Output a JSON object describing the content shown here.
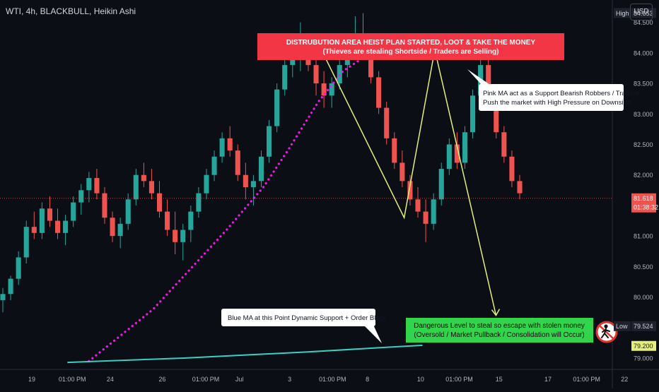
{
  "header": {
    "title": "WTI, 4h, BLACKBULL, Heikin Ashi",
    "currency_button": "USD"
  },
  "colors": {
    "background": "#0c0e15",
    "up": "#26a69a",
    "down": "#ef5350",
    "pink_ma": "#e91ee0",
    "blue_ma": "#3ad0c0",
    "annotation": "#e4ef7a",
    "current_price": "#ef5350"
  },
  "chart_data": {
    "type": "candlestick",
    "style": "Heikin Ashi",
    "symbol": "WTI",
    "interval": "4h",
    "broker": "BLACKBULL",
    "ylim": [
      78.85,
      84.75
    ],
    "y_ticks": [
      "79.000",
      "79.500",
      "80.000",
      "80.500",
      "81.000",
      "81.500",
      "82.000",
      "82.500",
      "83.000",
      "83.500",
      "84.000",
      "84.500"
    ],
    "x_ticks": [
      "19",
      "01:00 PM",
      "24",
      "26",
      "01:00 PM",
      "Jul",
      "3",
      "01:00 PM",
      "8",
      "10",
      "01:00 PM",
      "15",
      "17",
      "01:00 PM",
      "22"
    ],
    "high": {
      "label": "High",
      "value": "84.653"
    },
    "low": {
      "label": "Low",
      "value": "79.524"
    },
    "current_price": {
      "value": "81.618",
      "countdown": "01:38:32"
    },
    "level_marker": "79.200",
    "candles_sample": [
      {
        "o": 79.95,
        "h": 80.15,
        "l": 79.75,
        "c": 80.05
      },
      {
        "o": 80.05,
        "h": 80.35,
        "l": 79.95,
        "c": 80.3
      },
      {
        "o": 80.3,
        "h": 80.75,
        "l": 80.2,
        "c": 80.65
      },
      {
        "o": 80.65,
        "h": 81.25,
        "l": 80.55,
        "c": 81.15
      },
      {
        "o": 81.15,
        "h": 81.4,
        "l": 80.95,
        "c": 81.05
      },
      {
        "o": 81.05,
        "h": 81.55,
        "l": 80.95,
        "c": 81.45
      },
      {
        "o": 81.45,
        "h": 81.65,
        "l": 81.15,
        "c": 81.25
      },
      {
        "o": 81.25,
        "h": 81.45,
        "l": 80.95,
        "c": 81.05
      },
      {
        "o": 81.05,
        "h": 81.35,
        "l": 80.85,
        "c": 81.25
      },
      {
        "o": 81.25,
        "h": 81.65,
        "l": 81.15,
        "c": 81.55
      },
      {
        "o": 81.55,
        "h": 81.85,
        "l": 81.35,
        "c": 81.75
      },
      {
        "o": 81.75,
        "h": 82.05,
        "l": 81.55,
        "c": 81.95
      },
      {
        "o": 81.95,
        "h": 82.1,
        "l": 81.6,
        "c": 81.7
      },
      {
        "o": 81.7,
        "h": 81.8,
        "l": 81.2,
        "c": 81.3
      },
      {
        "o": 81.3,
        "h": 81.4,
        "l": 80.9,
        "c": 81.0
      },
      {
        "o": 81.0,
        "h": 81.3,
        "l": 80.8,
        "c": 81.2
      },
      {
        "o": 81.2,
        "h": 81.7,
        "l": 81.1,
        "c": 81.6
      },
      {
        "o": 81.6,
        "h": 82.1,
        "l": 81.5,
        "c": 82.0
      },
      {
        "o": 82.0,
        "h": 82.2,
        "l": 81.8,
        "c": 81.9
      },
      {
        "o": 81.9,
        "h": 82.1,
        "l": 81.6,
        "c": 81.7
      },
      {
        "o": 81.7,
        "h": 81.9,
        "l": 81.3,
        "c": 81.4
      },
      {
        "o": 81.4,
        "h": 81.6,
        "l": 81.0,
        "c": 81.1
      },
      {
        "o": 81.1,
        "h": 81.4,
        "l": 80.7,
        "c": 80.9
      },
      {
        "o": 80.9,
        "h": 81.2,
        "l": 80.6,
        "c": 81.1
      },
      {
        "o": 81.1,
        "h": 81.5,
        "l": 80.9,
        "c": 81.4
      },
      {
        "o": 81.4,
        "h": 81.8,
        "l": 81.3,
        "c": 81.7
      },
      {
        "o": 81.7,
        "h": 82.1,
        "l": 81.6,
        "c": 82.0
      },
      {
        "o": 82.0,
        "h": 82.4,
        "l": 81.9,
        "c": 82.3
      },
      {
        "o": 82.3,
        "h": 82.7,
        "l": 82.2,
        "c": 82.6
      },
      {
        "o": 82.6,
        "h": 82.8,
        "l": 82.3,
        "c": 82.4
      },
      {
        "o": 82.4,
        "h": 82.5,
        "l": 81.9,
        "c": 82.0
      },
      {
        "o": 82.0,
        "h": 82.2,
        "l": 81.6,
        "c": 81.8
      },
      {
        "o": 81.8,
        "h": 82.0,
        "l": 81.5,
        "c": 81.9
      },
      {
        "o": 81.9,
        "h": 82.4,
        "l": 81.8,
        "c": 82.3
      },
      {
        "o": 82.3,
        "h": 82.9,
        "l": 82.2,
        "c": 82.8
      },
      {
        "o": 82.8,
        "h": 83.5,
        "l": 82.7,
        "c": 83.4
      },
      {
        "o": 83.4,
        "h": 83.9,
        "l": 83.3,
        "c": 83.8
      },
      {
        "o": 83.8,
        "h": 84.2,
        "l": 83.6,
        "c": 83.9
      },
      {
        "o": 83.9,
        "h": 84.5,
        "l": 83.7,
        "c": 84.2
      },
      {
        "o": 84.2,
        "h": 84.3,
        "l": 83.7,
        "c": 83.8
      },
      {
        "o": 83.8,
        "h": 84.0,
        "l": 83.3,
        "c": 83.5
      },
      {
        "o": 83.5,
        "h": 83.7,
        "l": 83.1,
        "c": 83.3
      },
      {
        "o": 83.3,
        "h": 83.6,
        "l": 83.1,
        "c": 83.5
      },
      {
        "o": 83.5,
        "h": 83.9,
        "l": 83.4,
        "c": 83.8
      },
      {
        "o": 83.8,
        "h": 84.2,
        "l": 83.6,
        "c": 84.1
      },
      {
        "o": 84.1,
        "h": 84.6,
        "l": 83.9,
        "c": 84.3
      },
      {
        "o": 84.3,
        "h": 84.65,
        "l": 84.0,
        "c": 84.1
      },
      {
        "o": 84.1,
        "h": 84.2,
        "l": 83.5,
        "c": 83.6
      },
      {
        "o": 83.6,
        "h": 83.7,
        "l": 83.0,
        "c": 83.1
      },
      {
        "o": 83.1,
        "h": 83.2,
        "l": 82.5,
        "c": 82.6
      },
      {
        "o": 82.6,
        "h": 82.7,
        "l": 82.1,
        "c": 82.2
      },
      {
        "o": 82.2,
        "h": 82.4,
        "l": 81.8,
        "c": 81.9
      },
      {
        "o": 81.9,
        "h": 82.0,
        "l": 81.5,
        "c": 81.6
      },
      {
        "o": 81.6,
        "h": 81.8,
        "l": 81.3,
        "c": 81.4
      },
      {
        "o": 81.4,
        "h": 81.6,
        "l": 80.9,
        "c": 81.2
      },
      {
        "o": 81.2,
        "h": 81.7,
        "l": 81.1,
        "c": 81.6
      },
      {
        "o": 81.6,
        "h": 82.2,
        "l": 81.5,
        "c": 82.1
      },
      {
        "o": 82.1,
        "h": 82.6,
        "l": 82.0,
        "c": 82.5
      },
      {
        "o": 82.5,
        "h": 82.7,
        "l": 82.1,
        "c": 82.2
      },
      {
        "o": 82.2,
        "h": 82.8,
        "l": 82.1,
        "c": 82.7
      },
      {
        "o": 82.7,
        "h": 83.4,
        "l": 82.6,
        "c": 83.3
      },
      {
        "o": 83.3,
        "h": 84.0,
        "l": 83.2,
        "c": 83.8
      },
      {
        "o": 83.8,
        "h": 83.9,
        "l": 83.1,
        "c": 83.2
      },
      {
        "o": 83.2,
        "h": 83.3,
        "l": 82.6,
        "c": 82.7
      },
      {
        "o": 82.7,
        "h": 82.8,
        "l": 82.2,
        "c": 82.3
      },
      {
        "o": 82.3,
        "h": 82.4,
        "l": 81.8,
        "c": 81.9
      },
      {
        "o": 81.9,
        "h": 82.0,
        "l": 81.6,
        "c": 81.7
      }
    ],
    "pink_ma": [
      [
        0.145,
        78.95
      ],
      [
        0.25,
        79.8
      ],
      [
        0.37,
        81.1
      ],
      [
        0.43,
        81.8
      ],
      [
        0.47,
        82.4
      ],
      [
        0.52,
        83.2
      ],
      [
        0.56,
        83.7
      ],
      [
        0.62,
        84.1
      ],
      [
        0.67,
        84.15
      ],
      [
        0.74,
        84.12
      ],
      [
        0.79,
        84.05
      ]
    ],
    "blue_ma": [
      [
        0.11,
        78.93
      ],
      [
        0.3,
        79.0
      ],
      [
        0.5,
        79.1
      ],
      [
        0.62,
        79.17
      ],
      [
        0.69,
        79.21
      ]
    ],
    "zigzag": [
      [
        0.52,
        84.15
      ],
      [
        0.66,
        81.3
      ],
      [
        0.71,
        84.05
      ],
      [
        0.81,
        79.7
      ]
    ],
    "annotations": {
      "top_line1": "DISTRUBUTION AREA HEIST PLAN STARTED, LOOT & TAKE THE MONEY",
      "top_line2": "(Thieves are stealing Shortside / Traders are Selling)",
      "right_line1": "Pink MA act as a Support Bearish Robbers / Traders",
      "right_line2": "Push the market with High Pressure on Downside",
      "blue_note": "Blue MA at this Point Dynamic Support + Order Block",
      "green_line1": "Dangerous Level to steal so escape with stolen money",
      "green_line2": "(Oversold / Market Pullback / Consolidation will Occur)"
    }
  }
}
